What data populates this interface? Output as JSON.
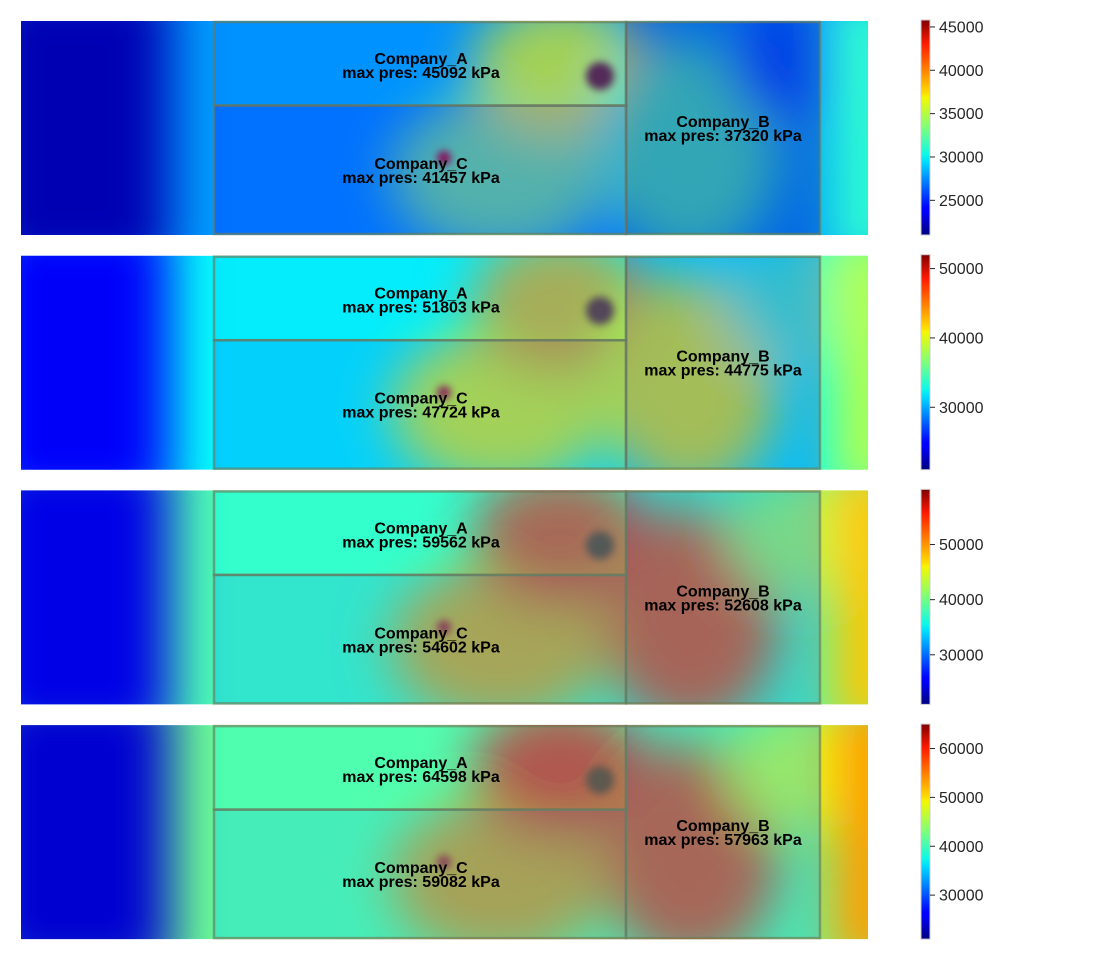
{
  "chart_data": [
    {
      "type": "heatmap",
      "title": "",
      "colormap": "jet",
      "colorbar": {
        "range": [
          21000,
          45800
        ],
        "ticks": [
          25000,
          30000,
          35000,
          40000,
          45000
        ]
      },
      "regions": [
        {
          "name": "Company_A",
          "max_label": "max pres: 45092 kPa",
          "max_pressure_kpa": 45092
        },
        {
          "name": "Company_C",
          "max_label": "max pres: 41457 kPa",
          "max_pressure_kpa": 41457
        },
        {
          "name": "Company_B",
          "max_label": "max pres: 37320 kPa",
          "max_pressure_kpa": 37320
        }
      ]
    },
    {
      "type": "heatmap",
      "title": "",
      "colormap": "jet",
      "colorbar": {
        "range": [
          21000,
          52000
        ],
        "ticks": [
          30000,
          40000,
          50000
        ]
      },
      "regions": [
        {
          "name": "Company_A",
          "max_label": "max pres: 51803 kPa",
          "max_pressure_kpa": 51803
        },
        {
          "name": "Company_C",
          "max_label": "max pres: 47724 kPa",
          "max_pressure_kpa": 47724
        },
        {
          "name": "Company_B",
          "max_label": "max pres: 44775 kPa",
          "max_pressure_kpa": 44775
        }
      ]
    },
    {
      "type": "heatmap",
      "title": "",
      "colormap": "jet",
      "colorbar": {
        "range": [
          21000,
          60000
        ],
        "ticks": [
          30000,
          40000,
          50000
        ]
      },
      "regions": [
        {
          "name": "Company_A",
          "max_label": "max pres: 59562 kPa",
          "max_pressure_kpa": 59562
        },
        {
          "name": "Company_C",
          "max_label": "max pres: 54602 kPa",
          "max_pressure_kpa": 54602
        },
        {
          "name": "Company_B",
          "max_label": "max pres: 52608 kPa",
          "max_pressure_kpa": 52608
        }
      ]
    },
    {
      "type": "heatmap",
      "title": "",
      "colormap": "jet",
      "colorbar": {
        "range": [
          21000,
          65000
        ],
        "ticks": [
          30000,
          40000,
          50000,
          60000
        ]
      },
      "regions": [
        {
          "name": "Company_A",
          "max_label": "max pres: 64598 kPa",
          "max_pressure_kpa": 64598
        },
        {
          "name": "Company_C",
          "max_label": "max pres: 59082 kPa",
          "max_pressure_kpa": 59082
        },
        {
          "name": "Company_B",
          "max_label": "max pres: 57963 kPa",
          "max_pressure_kpa": 57963
        }
      ]
    }
  ]
}
